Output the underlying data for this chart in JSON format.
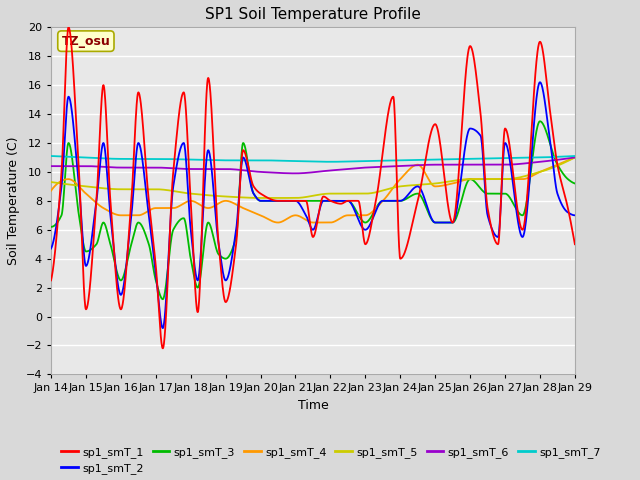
{
  "title": "SP1 Soil Temperature Profile",
  "xlabel": "Time",
  "ylabel": "Soil Temperature (C)",
  "annotation": "TZ_osu",
  "ylim": [
    -4,
    20
  ],
  "yticks": [
    -4,
    -2,
    0,
    2,
    4,
    6,
    8,
    10,
    12,
    14,
    16,
    18,
    20
  ],
  "xtick_labels": [
    "Jan 14",
    "Jan 15",
    "Jan 16",
    "Jan 17",
    "Jan 18",
    "Jan 19",
    "Jan 20",
    "Jan 21",
    "Jan 22",
    "Jan 23",
    "Jan 24",
    "Jan 25",
    "Jan 26",
    "Jan 27",
    "Jan 28",
    "Jan 29"
  ],
  "series_colors": {
    "sp1_smT_1": "#ff0000",
    "sp1_smT_2": "#0000ff",
    "sp1_smT_3": "#00bb00",
    "sp1_smT_4": "#ff9900",
    "sp1_smT_5": "#cccc00",
    "sp1_smT_6": "#9900cc",
    "sp1_smT_7": "#00cccc"
  },
  "background_color": "#d9d9d9",
  "plot_bg_color": "#e8e8e8",
  "grid_color": "#ffffff",
  "legend_ncol": 6
}
